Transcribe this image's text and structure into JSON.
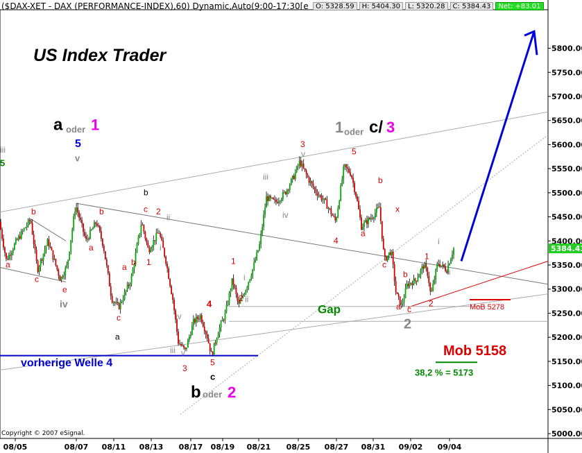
{
  "header": {
    "title": "($DAX-XET - DAX (PERFORMANCE-INDEX),60) Dynamic,Auto(9:00-17:30[e",
    "open": "O: 5328.59",
    "high": "H: 5404.30",
    "low": "L: 5320.28",
    "close": "C: 5384.43",
    "net": "Net: +83.01"
  },
  "chart_title": "US Index Trader",
  "copyright": "Copyright © 2007 eSignal.",
  "colors": {
    "up": "#00aa00",
    "down": "#cc0000",
    "red": "#dd0000",
    "blue": "#0000dd",
    "green": "#008800",
    "gray": "#888888",
    "magenta": "#ee00ee"
  },
  "chart_data": {
    "type": "candlestick",
    "ylim": [
      4990,
      5880
    ],
    "y_ticks": [
      "5000.00",
      "5050.00",
      "5100.00",
      "5150.00",
      "5200.00",
      "5250.00",
      "5300.00",
      "5350.00",
      "5400.00",
      "5450.00",
      "5500.00",
      "5550.00",
      "5600.00",
      "5650.00",
      "5700.00",
      "5750.00",
      "5800.00"
    ],
    "y_tick_values": [
      5000,
      5050,
      5100,
      5150,
      5200,
      5250,
      5300,
      5350,
      5400,
      5450,
      5500,
      5550,
      5600,
      5650,
      5700,
      5750,
      5800
    ],
    "x_ticks": [
      "08/05",
      "08/07",
      "08/11",
      "08/13",
      "08/17",
      "08/19",
      "08/21",
      "08/25",
      "08/27",
      "08/31",
      "09/02",
      "09/04"
    ],
    "x_tick_bars": [
      22,
      110,
      164,
      218,
      275,
      321,
      373,
      430,
      485,
      538,
      592,
      648
    ],
    "n_bars": 330,
    "last_price": "5384.43",
    "last_price_value": 5384.43,
    "path": [
      [
        0,
        5440
      ],
      [
        10,
        5360
      ],
      [
        25,
        5400
      ],
      [
        45,
        5445
      ],
      [
        55,
        5340
      ],
      [
        70,
        5400
      ],
      [
        88,
        5320
      ],
      [
        98,
        5350
      ],
      [
        110,
        5475
      ],
      [
        125,
        5400
      ],
      [
        140,
        5440
      ],
      [
        150,
        5390
      ],
      [
        162,
        5280
      ],
      [
        172,
        5262
      ],
      [
        190,
        5320
      ],
      [
        205,
        5440
      ],
      [
        215,
        5380
      ],
      [
        230,
        5420
      ],
      [
        240,
        5360
      ],
      [
        250,
        5280
      ],
      [
        258,
        5190
      ],
      [
        268,
        5172
      ],
      [
        280,
        5232
      ],
      [
        290,
        5245
      ],
      [
        300,
        5200
      ],
      [
        306,
        5162
      ],
      [
        315,
        5210
      ],
      [
        326,
        5250
      ],
      [
        336,
        5320
      ],
      [
        345,
        5265
      ],
      [
        355,
        5300
      ],
      [
        365,
        5340
      ],
      [
        375,
        5390
      ],
      [
        385,
        5490
      ],
      [
        398,
        5480
      ],
      [
        412,
        5500
      ],
      [
        425,
        5535
      ],
      [
        433,
        5565
      ],
      [
        445,
        5530
      ],
      [
        455,
        5505
      ],
      [
        470,
        5480
      ],
      [
        485,
        5440
      ],
      [
        497,
        5555
      ],
      [
        507,
        5540
      ],
      [
        515,
        5490
      ],
      [
        522,
        5430
      ],
      [
        537,
        5450
      ],
      [
        548,
        5470
      ],
      [
        555,
        5360
      ],
      [
        565,
        5380
      ],
      [
        572,
        5290
      ],
      [
        580,
        5265
      ],
      [
        588,
        5310
      ],
      [
        600,
        5318
      ],
      [
        612,
        5350
      ],
      [
        618,
        5330
      ],
      [
        622,
        5285
      ],
      [
        632,
        5355
      ],
      [
        645,
        5340
      ],
      [
        655,
        5385
      ]
    ],
    "hlines": [
      {
        "y": 5264,
        "x1_bar": 330,
        "x2_bar": 700,
        "color": "#aaaaaa"
      },
      {
        "y": 5233,
        "x1_bar": 330,
        "x2_bar": 790,
        "color": "#aaaaaa"
      },
      {
        "y": 5162,
        "x1_bar": 0,
        "x2_bar": 372,
        "color": "#0000cc"
      },
      {
        "y": 5278,
        "x1_bar": 677,
        "x2_bar": 736,
        "color": "#dd0000"
      },
      {
        "y": 5148,
        "x1_bar": 628,
        "x2_bar": 688,
        "color": "#008800"
      }
    ],
    "trendlines": [
      {
        "from": [
          0,
          5460
        ],
        "to": [
          790,
          5668
        ],
        "color": "#aaaaaa",
        "dashed": false
      },
      {
        "from": [
          110,
          5478
        ],
        "to": [
          790,
          5310
        ],
        "color": "#777777",
        "dashed": false
      },
      {
        "from": [
          0,
          5345
        ],
        "to": [
          95,
          5315
        ],
        "color": "#777777",
        "dashed": false
      },
      {
        "from": [
          45,
          5445
        ],
        "to": [
          95,
          5400
        ],
        "color": "#777777",
        "dashed": false
      },
      {
        "from": [
          0,
          5132
        ],
        "to": [
          790,
          5290
        ],
        "color": "#aaaaaa",
        "dashed": false
      },
      {
        "from": [
          260,
          5040
        ],
        "to": [
          790,
          5620
        ],
        "color": "#aaaaaa",
        "dashed": true
      },
      {
        "from": [
          588,
          5262
        ],
        "to": [
          790,
          5358
        ],
        "color": "#dd0000",
        "dashed": false
      }
    ],
    "arrow": {
      "from": [
        665,
        5358
      ],
      "to": [
        770,
        5835
      ],
      "color": "#0000dd"
    },
    "annotations": [
      {
        "text": "US Index Trader",
        "bar": 48,
        "y": 5770,
        "color": "#000000",
        "size": 25
      },
      {
        "text": "a",
        "bar": 77,
        "y": 5630,
        "color": "#000000",
        "size": 24,
        "bold": true
      },
      {
        "text": "oder",
        "bar": 95,
        "y": 5625,
        "color": "#888888",
        "size": 13
      },
      {
        "text": "1",
        "bar": 131,
        "y": 5630,
        "color": "#ee00ee",
        "size": 22
      },
      {
        "text": "5",
        "bar": 108,
        "y": 5595,
        "color": "#0000dd",
        "size": 16
      },
      {
        "text": "v",
        "bar": 108,
        "y": 5565,
        "color": "#888888",
        "size": 13
      },
      {
        "text": "iii",
        "bar": 0,
        "y": 5583,
        "color": "#888888",
        "size": 12
      },
      {
        "text": "5",
        "bar": 0,
        "y": 5555,
        "color": "#008800",
        "size": 13
      },
      {
        "text": "b",
        "bar": 45,
        "y": 5455,
        "color": "#dd0000",
        "size": 12
      },
      {
        "text": "b",
        "bar": 143,
        "y": 5455,
        "color": "#dd0000",
        "size": 12
      },
      {
        "text": "b",
        "bar": 207,
        "y": 5495,
        "color": "#000000",
        "size": 12
      },
      {
        "text": "c",
        "bar": 207,
        "y": 5460,
        "color": "#dd0000",
        "size": 12
      },
      {
        "text": "2",
        "bar": 225,
        "y": 5455,
        "color": "#dd0000",
        "size": 12
      },
      {
        "text": "ii",
        "bar": 240,
        "y": 5443,
        "color": "#888888",
        "size": 12
      },
      {
        "text": "a",
        "bar": 8,
        "y": 5345,
        "color": "#dd0000",
        "size": 12
      },
      {
        "text": "c",
        "bar": 50,
        "y": 5315,
        "color": "#dd0000",
        "size": 12
      },
      {
        "text": "e",
        "bar": 90,
        "y": 5293,
        "color": "#dd0000",
        "size": 12
      },
      {
        "text": "iv",
        "bar": 86,
        "y": 5262,
        "color": "#888888",
        "size": 14
      },
      {
        "text": "a",
        "bar": 128,
        "y": 5380,
        "color": "#dd0000",
        "size": 12
      },
      {
        "text": "a",
        "bar": 176,
        "y": 5340,
        "color": "#dd0000",
        "size": 12
      },
      {
        "text": "b",
        "bar": 189,
        "y": 5350,
        "color": "#dd0000",
        "size": 12
      },
      {
        "text": "1",
        "bar": 211,
        "y": 5350,
        "color": "#dd0000",
        "size": 12
      },
      {
        "text": "i",
        "bar": 230,
        "y": 5380,
        "color": "#888888",
        "size": 12
      },
      {
        "text": "c",
        "bar": 168,
        "y": 5235,
        "color": "#dd0000",
        "size": 12
      },
      {
        "text": "a",
        "bar": 166,
        "y": 5195,
        "color": "#000000",
        "size": 12
      },
      {
        "text": "iv",
        "bar": 253,
        "y": 5238,
        "color": "#888888",
        "size": 12
      },
      {
        "text": "4",
        "bar": 298,
        "y": 5263,
        "color": "#dd0000",
        "size": 13
      },
      {
        "text": "iii",
        "bar": 245,
        "y": 5167,
        "color": "#888888",
        "size": 12
      },
      {
        "text": "v",
        "bar": 261,
        "y": 5162,
        "color": "#888888",
        "size": 12
      },
      {
        "text": "3",
        "bar": 263,
        "y": 5130,
        "color": "#dd0000",
        "size": 12
      },
      {
        "text": "5",
        "bar": 303,
        "y": 5142,
        "color": "#dd0000",
        "size": 12
      },
      {
        "text": "c",
        "bar": 303,
        "y": 5112,
        "color": "#000000",
        "size": 13
      },
      {
        "text": "vorherige Welle 4",
        "bar": 30,
        "y": 5140,
        "color": "#0000cc",
        "size": 16
      },
      {
        "text": "b",
        "bar": 275,
        "y": 5075,
        "color": "#000000",
        "size": 24,
        "bold": true
      },
      {
        "text": "oder",
        "bar": 292,
        "y": 5075,
        "color": "#888888",
        "size": 13
      },
      {
        "text": "2",
        "bar": 328,
        "y": 5075,
        "color": "#ee00ee",
        "size": 22
      },
      {
        "text": "1",
        "bar": 333,
        "y": 5352,
        "color": "#dd0000",
        "size": 12
      },
      {
        "text": "2",
        "bar": 344,
        "y": 5275,
        "color": "#dd0000",
        "size": 12
      },
      {
        "text": "i",
        "bar": 351,
        "y": 5318,
        "color": "#888888",
        "size": 12
      },
      {
        "text": "ii",
        "bar": 353,
        "y": 5273,
        "color": "#888888",
        "size": 12
      },
      {
        "text": "iii",
        "bar": 379,
        "y": 5527,
        "color": "#888888",
        "size": 12
      },
      {
        "text": "iv",
        "bar": 407,
        "y": 5448,
        "color": "#888888",
        "size": 12
      },
      {
        "text": "3",
        "bar": 433,
        "y": 5595,
        "color": "#dd0000",
        "size": 12
      },
      {
        "text": "v",
        "bar": 434,
        "y": 5575,
        "color": "#888888",
        "size": 12
      },
      {
        "text": "1",
        "bar": 483,
        "y": 5625,
        "color": "#888888",
        "size": 22,
        "bold": true
      },
      {
        "text": "oder",
        "bar": 496,
        "y": 5620,
        "color": "#888888",
        "size": 13
      },
      {
        "text": "c/",
        "bar": 532,
        "y": 5625,
        "color": "#000000",
        "size": 24,
        "bold": true
      },
      {
        "text": "3",
        "bar": 557,
        "y": 5625,
        "color": "#ee00ee",
        "size": 22
      },
      {
        "text": "5",
        "bar": 507,
        "y": 5580,
        "color": "#dd0000",
        "size": 12
      },
      {
        "text": "4",
        "bar": 481,
        "y": 5395,
        "color": "#dd0000",
        "size": 12
      },
      {
        "text": "a",
        "bar": 520,
        "y": 5410,
        "color": "#dd0000",
        "size": 12
      },
      {
        "text": "b",
        "bar": 545,
        "y": 5520,
        "color": "#dd0000",
        "size": 12
      },
      {
        "text": "x",
        "bar": 570,
        "y": 5460,
        "color": "#dd0000",
        "size": 12
      },
      {
        "text": "c",
        "bar": 551,
        "y": 5345,
        "color": "#dd0000",
        "size": 12
      },
      {
        "text": "1",
        "bar": 612,
        "y": 5362,
        "color": "#dd0000",
        "size": 12
      },
      {
        "text": "i",
        "bar": 631,
        "y": 5393,
        "color": "#888888",
        "size": 12
      },
      {
        "text": "ii",
        "bar": 644,
        "y": 5330,
        "color": "#888888",
        "size": 12
      },
      {
        "text": "b",
        "bar": 581,
        "y": 5325,
        "color": "#dd0000",
        "size": 12
      },
      {
        "text": "a",
        "bar": 571,
        "y": 5258,
        "color": "#dd0000",
        "size": 12
      },
      {
        "text": "c",
        "bar": 587,
        "y": 5252,
        "color": "#dd0000",
        "size": 12
      },
      {
        "text": "2",
        "bar": 618,
        "y": 5264,
        "color": "#dd0000",
        "size": 12
      },
      {
        "text": "2",
        "bar": 582,
        "y": 5218,
        "color": "#888888",
        "size": 20,
        "bold": true
      },
      {
        "text": "Gap",
        "bar": 458,
        "y": 5250,
        "color": "#008800",
        "size": 17,
        "bold": true
      },
      {
        "text": "MoB 5278",
        "bar": 677,
        "y": 5258,
        "color": "#dd0000",
        "size": 11
      },
      {
        "text": "Mob 5158",
        "bar": 639,
        "y": 5163,
        "color": "#dd0000",
        "size": 20,
        "bold": true
      },
      {
        "text": "38,2 % = 5173",
        "bar": 598,
        "y": 5120,
        "color": "#008800",
        "size": 13,
        "bold": true
      }
    ]
  }
}
